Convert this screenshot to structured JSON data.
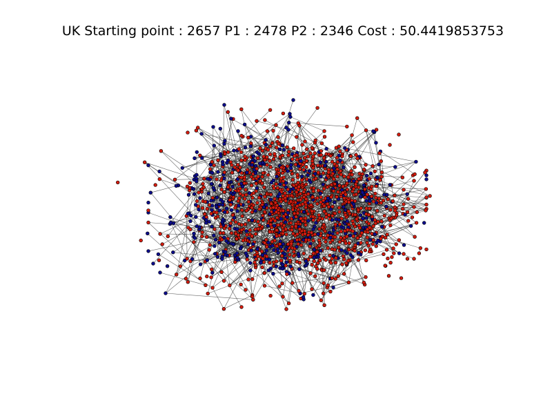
{
  "figure": {
    "title": "UK Starting point : 2657 P1 : 2478 P2 : 2346 Cost : 50.4419853753"
  },
  "graph": {
    "type": "network-graph",
    "partition_colors": {
      "red_group": "#d31c0f",
      "blue_group": "#0d0d8c"
    },
    "edge_color": "#333333",
    "node_outline_color": "#000000",
    "background": "#ffffff"
  }
}
